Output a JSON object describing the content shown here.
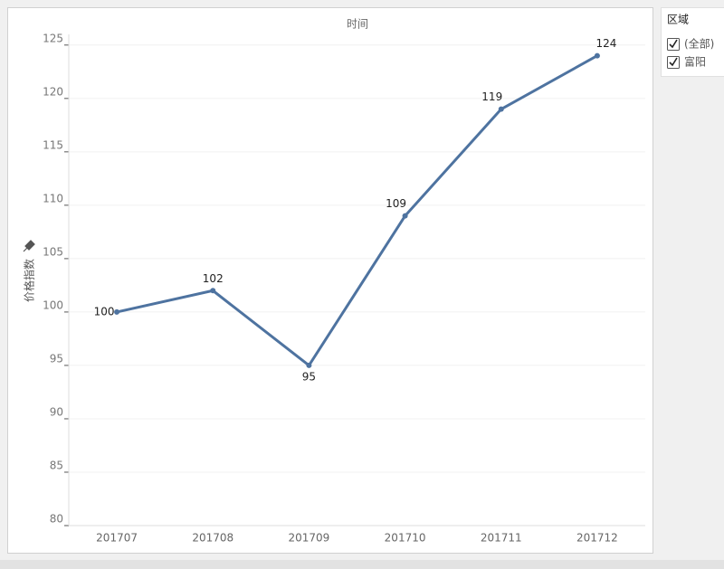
{
  "chart_data": {
    "type": "line",
    "title": "时间",
    "y_label": "价格指数",
    "categories": [
      "201707",
      "201708",
      "201709",
      "201710",
      "201711",
      "201712"
    ],
    "series": [
      {
        "name": "价格指数",
        "color": "#4e73a0",
        "values": [
          100,
          102,
          95,
          109,
          119,
          124
        ]
      }
    ],
    "ylim": [
      80,
      126
    ],
    "yticks": [
      80,
      85,
      90,
      95,
      100,
      105,
      110,
      115,
      120,
      125
    ],
    "grid": true
  },
  "filter": {
    "title": "区域",
    "items": [
      "(全部)",
      "富阳"
    ]
  }
}
